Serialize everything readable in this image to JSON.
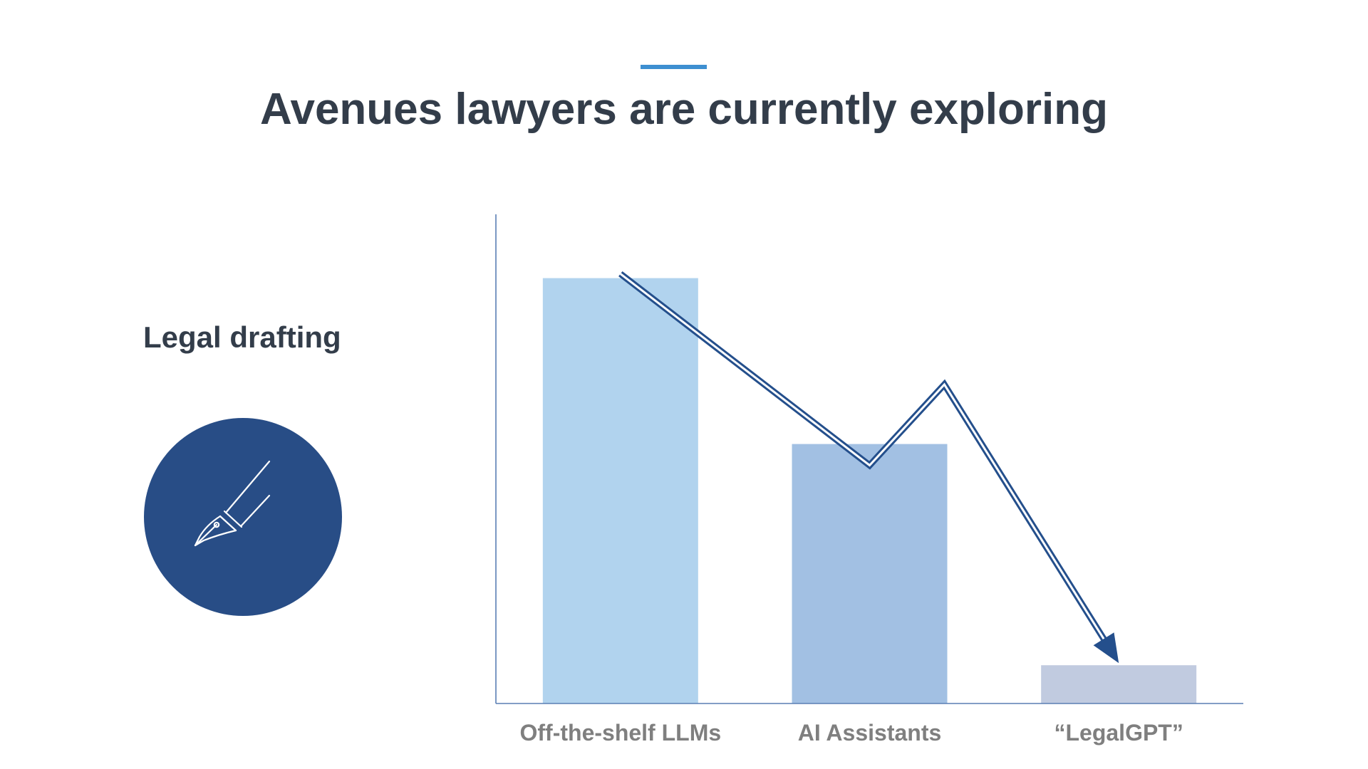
{
  "slide": {
    "title": "Avenues lawyers are currently exploring",
    "accent_color": "#3d8fd1",
    "side_label": "Legal drafting",
    "icon": {
      "name": "fountain-pen-icon",
      "circle_color": "#284d86",
      "stroke_color": "#ffffff"
    }
  },
  "chart_data": {
    "type": "bar",
    "title": "",
    "xlabel": "",
    "ylabel": "",
    "categories": [
      "Off-the-shelf LLMs",
      "AI Assistants",
      "“LegalGPT”"
    ],
    "values": [
      100,
      61,
      9
    ],
    "ylim": [
      0,
      115
    ],
    "grid": false,
    "legend": "none",
    "bar_colors": [
      "#b1d3ee",
      "#a2c0e3",
      "#c1cbe0"
    ],
    "axis_color": "#5a7fb4",
    "trend_arrow": {
      "color": "#244f8c",
      "style": "double-line",
      "direction": "down",
      "points": [
        {
          "category": 0,
          "value": 101
        },
        {
          "category": 1,
          "value": 56
        },
        {
          "category": 1.3,
          "value": 75
        },
        {
          "category": 2,
          "value": 9
        }
      ]
    }
  }
}
